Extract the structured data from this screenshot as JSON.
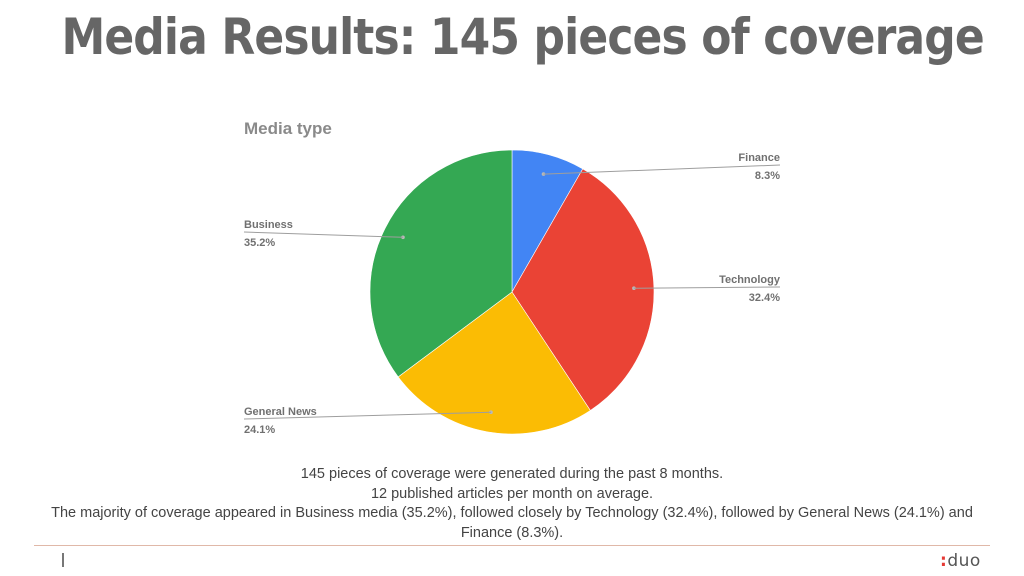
{
  "slide": {
    "title": "Media Results: 145 pieces of coverage",
    "summary_lines": [
      "145 pieces of coverage were generated during the past 8 months.",
      "12 published articles per month on average.",
      "The majority of coverage appeared in Business media (35.2%), followed closely by Technology (32.4%), followed by General News (24.1%) and Finance (8.3%)."
    ],
    "logo_colon": ":",
    "logo_text": "duo"
  },
  "chart_data": {
    "type": "pie",
    "title": "Media type",
    "slices": [
      {
        "label": "Finance",
        "value": 8.3,
        "value_label": "8.3%",
        "color": "#4285f4"
      },
      {
        "label": "Technology",
        "value": 32.4,
        "value_label": "32.4%",
        "color": "#ea4335"
      },
      {
        "label": "General News",
        "value": 24.1,
        "value_label": "24.1%",
        "color": "#fbbc04"
      },
      {
        "label": "Business",
        "value": 35.2,
        "value_label": "35.2%",
        "color": "#34a853"
      }
    ],
    "start_angle": "12 o'clock",
    "direction": "clockwise",
    "labels": "outside with leader lines"
  }
}
